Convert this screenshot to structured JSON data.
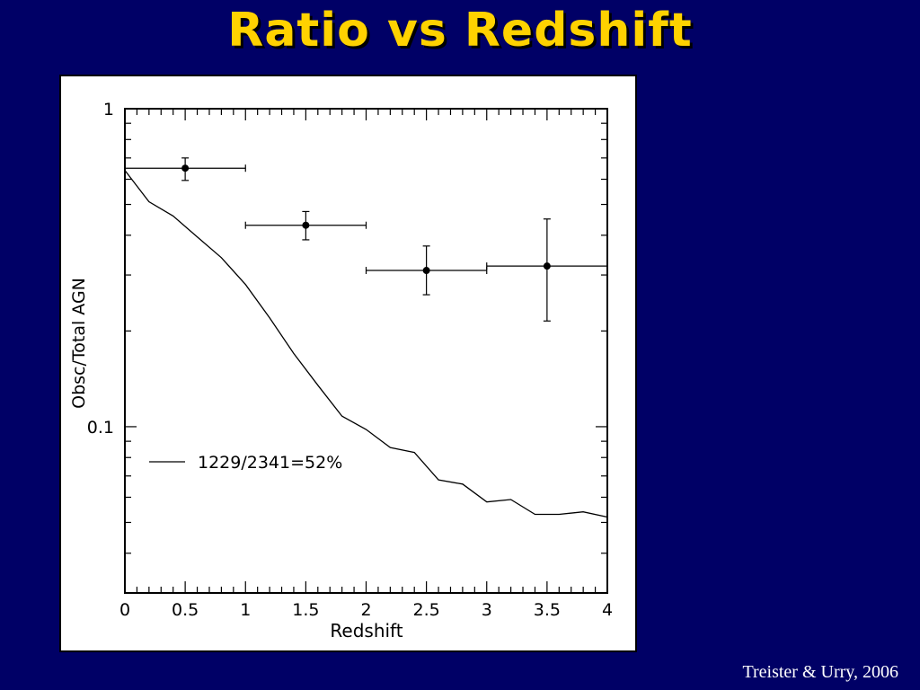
{
  "slide": {
    "title": "Ratio vs Redshift",
    "citation": "Treister & Urry, 2006",
    "title_color": "#ffd200",
    "background_color": "#000066"
  },
  "chart_data": {
    "type": "line",
    "title": "",
    "xlabel": "Redshift",
    "ylabel": "Obsc/Total AGN",
    "xlim": [
      0,
      4
    ],
    "ylim": [
      0.03,
      1
    ],
    "y_scale": "log",
    "x_ticks": [
      "0",
      "0.5",
      "1",
      "1.5",
      "2",
      "2.5",
      "3",
      "3.5",
      "4"
    ],
    "y_ticks": [
      "0.1",
      "1"
    ],
    "grid": false,
    "legend_position": "lower-left",
    "series": [
      {
        "name": "1229/2341=52%",
        "kind": "line",
        "x": [
          0,
          0.2,
          0.4,
          0.6,
          0.8,
          1.0,
          1.2,
          1.4,
          1.6,
          1.8,
          2.0,
          2.2,
          2.4,
          2.6,
          2.8,
          3.0,
          3.2,
          3.4,
          3.6,
          3.8,
          4.0
        ],
        "y": [
          0.64,
          0.51,
          0.46,
          0.395,
          0.34,
          0.28,
          0.22,
          0.17,
          0.135,
          0.108,
          0.098,
          0.086,
          0.083,
          0.068,
          0.066,
          0.058,
          0.059,
          0.053,
          0.053,
          0.054,
          0.052
        ]
      },
      {
        "kind": "errorbar",
        "x": [
          0.5,
          1.5,
          2.5,
          3.5
        ],
        "y": [
          0.65,
          0.43,
          0.31,
          0.32
        ],
        "xerr": [
          0.5,
          0.5,
          0.5,
          0.5
        ],
        "yerr_low": [
          0.055,
          0.043,
          0.05,
          0.105
        ],
        "yerr_high": [
          0.05,
          0.045,
          0.06,
          0.13
        ]
      }
    ]
  }
}
